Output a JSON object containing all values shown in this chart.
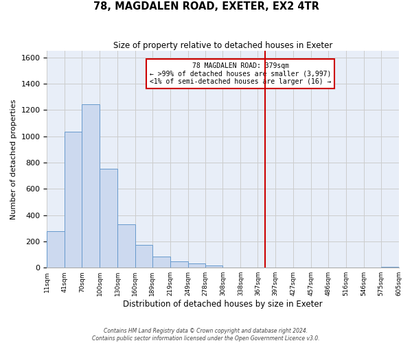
{
  "title": "78, MAGDALEN ROAD, EXETER, EX2 4TR",
  "subtitle": "Size of property relative to detached houses in Exeter",
  "xlabel": "Distribution of detached houses by size in Exeter",
  "ylabel": "Number of detached properties",
  "footer_line1": "Contains HM Land Registry data © Crown copyright and database right 2024.",
  "footer_line2": "Contains public sector information licensed under the Open Government Licence v3.0.",
  "bin_edges": [
    11,
    41,
    70,
    100,
    130,
    160,
    189,
    219,
    249,
    278,
    308,
    338,
    367,
    397,
    427,
    457,
    486,
    516,
    546,
    575,
    605
  ],
  "bin_counts": [
    280,
    1035,
    1245,
    755,
    330,
    175,
    85,
    50,
    35,
    15,
    0,
    0,
    0,
    0,
    0,
    0,
    0,
    0,
    0,
    5
  ],
  "bar_facecolor": "#ccd9ef",
  "bar_edgecolor": "#6699cc",
  "property_value": 379,
  "vline_color": "#cc0000",
  "annotation_title": "78 MAGDALEN ROAD: 379sqm",
  "annotation_line1": "← >99% of detached houses are smaller (3,997)",
  "annotation_line2": "<1% of semi-detached houses are larger (16) →",
  "annotation_box_edgecolor": "#cc0000",
  "ylim": [
    0,
    1650
  ],
  "yticks": [
    0,
    200,
    400,
    600,
    800,
    1000,
    1200,
    1400,
    1600
  ],
  "xtick_labels": [
    "11sqm",
    "41sqm",
    "70sqm",
    "100sqm",
    "130sqm",
    "160sqm",
    "189sqm",
    "219sqm",
    "249sqm",
    "278sqm",
    "308sqm",
    "338sqm",
    "367sqm",
    "397sqm",
    "427sqm",
    "457sqm",
    "486sqm",
    "516sqm",
    "546sqm",
    "575sqm",
    "605sqm"
  ],
  "grid_color": "#cccccc",
  "background_color": "#e8eef8"
}
